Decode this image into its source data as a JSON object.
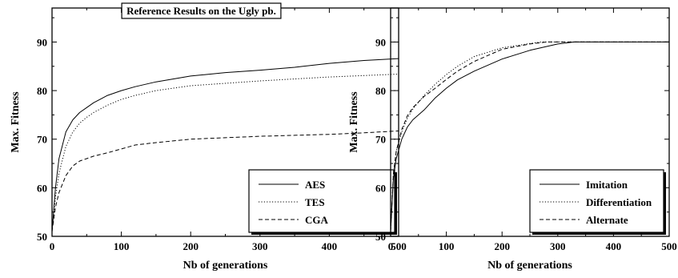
{
  "chart_data": [
    {
      "type": "line",
      "title": "Reference Results on the Ugly pb.",
      "xlabel": "Nb of generations",
      "ylabel": "Max. Fitness",
      "xlim": [
        0,
        500
      ],
      "ylim": [
        50,
        97
      ],
      "xticks": [
        0,
        100,
        200,
        300,
        400,
        500
      ],
      "yticks": [
        50,
        60,
        70,
        80,
        90
      ],
      "legend_position": "bottom-right",
      "series": [
        {
          "name": "AES",
          "style": "solid",
          "x": [
            0,
            5,
            10,
            20,
            30,
            40,
            50,
            60,
            80,
            100,
            120,
            150,
            200,
            250,
            300,
            350,
            400,
            450,
            500
          ],
          "y": [
            51,
            60,
            66,
            71.5,
            74,
            75.5,
            76.5,
            77.5,
            79,
            80,
            80.8,
            81.8,
            83,
            83.7,
            84.2,
            84.8,
            85.6,
            86.2,
            86.6
          ]
        },
        {
          "name": "TES",
          "style": "dotted",
          "x": [
            0,
            5,
            10,
            20,
            30,
            40,
            50,
            60,
            80,
            100,
            120,
            150,
            200,
            250,
            300,
            350,
            400,
            450,
            500
          ],
          "y": [
            51,
            58,
            63,
            68.5,
            71.5,
            73.3,
            74.5,
            75.5,
            77,
            78.2,
            79,
            80,
            81,
            81.5,
            82,
            82.4,
            82.8,
            83.1,
            83.4
          ]
        },
        {
          "name": "CGA",
          "style": "dashed",
          "x": [
            0,
            5,
            10,
            20,
            30,
            40,
            50,
            60,
            80,
            100,
            120,
            150,
            200,
            250,
            300,
            350,
            400,
            450,
            500
          ],
          "y": [
            51,
            56,
            59,
            62.5,
            64.5,
            65.5,
            66,
            66.5,
            67.2,
            68,
            68.8,
            69.3,
            70,
            70.3,
            70.6,
            70.8,
            71,
            71.3,
            71.7
          ]
        }
      ]
    },
    {
      "type": "line",
      "title": "",
      "xlabel": "Nb of generations",
      "ylabel": "Max. Fitness",
      "xlim": [
        0,
        500
      ],
      "ylim": [
        50,
        97
      ],
      "xticks": [
        0,
        100,
        200,
        300,
        400,
        500
      ],
      "yticks": [
        50,
        60,
        70,
        80,
        90
      ],
      "legend_position": "bottom-right",
      "series": [
        {
          "name": "Imitation",
          "style": "solid",
          "x": [
            0,
            5,
            10,
            20,
            30,
            40,
            60,
            80,
            100,
            120,
            150,
            200,
            250,
            300,
            330,
            350,
            400,
            450,
            500
          ],
          "y": [
            51,
            62,
            66,
            70,
            72.5,
            74,
            76,
            78.5,
            80.5,
            82.2,
            84,
            86.5,
            88.3,
            89.6,
            90,
            90,
            90,
            90,
            90
          ]
        },
        {
          "name": "Differentiation",
          "style": "dotted",
          "x": [
            0,
            5,
            10,
            20,
            30,
            40,
            60,
            80,
            100,
            120,
            150,
            200,
            250,
            270,
            300,
            350,
            400,
            450,
            500
          ],
          "y": [
            51,
            63,
            67.5,
            71.5,
            74.3,
            76.2,
            79,
            81.3,
            83.3,
            85,
            87,
            88.8,
            89.7,
            90,
            90,
            90,
            90,
            90,
            90
          ]
        },
        {
          "name": "Alternate",
          "style": "dashed",
          "x": [
            0,
            5,
            10,
            20,
            30,
            40,
            60,
            80,
            100,
            120,
            150,
            200,
            250,
            280,
            300,
            350,
            400,
            450,
            500
          ],
          "y": [
            51,
            63,
            67.5,
            72,
            74.8,
            76.5,
            78.8,
            80.5,
            82.3,
            84,
            86,
            88.5,
            89.6,
            90,
            90,
            90,
            90,
            90,
            90
          ]
        }
      ]
    }
  ]
}
